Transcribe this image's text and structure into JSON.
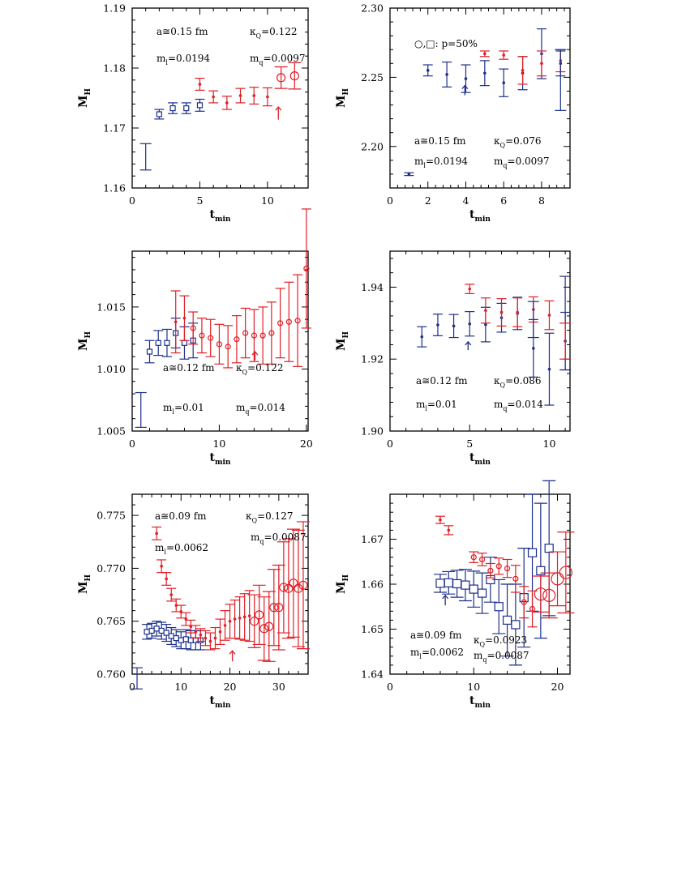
{
  "figure": {
    "palette": {
      "blue": "#1c2f8c",
      "red": "#e01f26",
      "frame": "#000000"
    }
  },
  "chart_data": [
    {
      "type": "scatter",
      "xlabel": "t",
      "xlabel_sub": "min",
      "ylabel": "M",
      "ylabel_sub": "H",
      "xlim": [
        0,
        13
      ],
      "ylim": [
        1.16,
        1.19
      ],
      "xticks": [
        0,
        5,
        10
      ],
      "yticks": [
        1.16,
        1.17,
        1.18,
        1.19
      ],
      "yticks_text": [
        "1.16",
        "1.17",
        "1.18",
        "1.19"
      ],
      "annotations": [
        {
          "base": "a≅0.15 fm"
        },
        {
          "base": "κ",
          "sub": "Q",
          "after": "=0.122"
        },
        {
          "base": "m",
          "sub": "l",
          "after": "=0.0194"
        },
        {
          "base": "m",
          "sub": "q",
          "after": "=0.0097"
        }
      ],
      "arrow": {
        "x": 10.8,
        "y_bottom": 1.1714,
        "y_top": 1.1735,
        "color": "red"
      },
      "series": [
        {
          "marker": "box",
          "color": "blue",
          "size": "medium",
          "x": [
            1
          ],
          "y": [
            1.1652
          ],
          "err": [
            0.0022
          ]
        },
        {
          "marker": "square",
          "color": "blue",
          "size": "small",
          "x": [
            2,
            3,
            4,
            5
          ],
          "y": [
            1.1723,
            1.1733,
            1.1733,
            1.1738
          ],
          "err": [
            0.0008,
            0.0009,
            0.0009,
            0.001
          ]
        },
        {
          "marker": "dot",
          "color": "red",
          "size": "small",
          "x": [
            5,
            6,
            7,
            8,
            9,
            10
          ],
          "y": [
            1.1773,
            1.1752,
            1.1742,
            1.1754,
            1.1754,
            1.1752
          ],
          "err": [
            0.001,
            0.001,
            0.0011,
            0.0012,
            0.0014,
            0.0015
          ]
        },
        {
          "marker": "circle",
          "color": "red",
          "size": "medium",
          "x": [
            11,
            12
          ],
          "y": [
            1.1784,
            1.1787
          ],
          "err": [
            0.0018,
            0.0022
          ]
        }
      ]
    },
    {
      "type": "scatter",
      "xlabel": "t",
      "xlabel_sub": "min",
      "ylabel": "M",
      "ylabel_sub": "H",
      "xlim": [
        0,
        9.5
      ],
      "ylim": [
        2.17,
        2.3
      ],
      "xticks": [
        0,
        2,
        4,
        6,
        8
      ],
      "yticks": [
        2.2,
        2.25,
        2.3
      ],
      "yticks_text": [
        "2.20",
        "2.25",
        "2.30"
      ],
      "annotations": [
        {
          "base": "○,□: p=50%"
        },
        {
          "base": "a≅0.15 fm"
        },
        {
          "base": "κ",
          "sub": "Q",
          "after": "=0.076"
        },
        {
          "base": "m",
          "sub": "l",
          "after": "=0.0194"
        },
        {
          "base": "m",
          "sub": "q",
          "after": "=0.0097"
        }
      ],
      "arrow": {
        "x": 3.95,
        "y_bottom": 2.237,
        "y_top": 2.244,
        "color": "blue"
      },
      "series": [
        {
          "marker": "dot",
          "color": "blue",
          "size": "small",
          "x": [
            1,
            2,
            3,
            4,
            5,
            6,
            7,
            8,
            9
          ],
          "y": [
            2.18,
            2.255,
            2.252,
            2.249,
            2.253,
            2.246,
            2.253,
            2.267,
            2.26
          ],
          "err": [
            0.001,
            0.004,
            0.009,
            0.01,
            0.009,
            0.01,
            0.012,
            0.018,
            0.009
          ]
        },
        {
          "marker": "dot",
          "color": "red",
          "size": "small",
          "x": [
            5,
            6,
            7,
            8,
            9
          ],
          "y": [
            2.267,
            2.266,
            2.255,
            2.26,
            2.262
          ],
          "err": [
            0.002,
            0.003,
            0.01,
            0.009,
            0.008
          ]
        },
        {
          "marker": "box",
          "color": "blue",
          "size": "medium",
          "x": [
            9
          ],
          "y": [
            2.248
          ],
          "err": [
            0.022
          ]
        }
      ]
    },
    {
      "type": "scatter",
      "xlabel": "t",
      "xlabel_sub": "min",
      "ylabel": "M",
      "ylabel_sub": "H",
      "xlim": [
        0,
        20.2
      ],
      "ylim": [
        1.005,
        1.0195
      ],
      "xticks": [
        0,
        10,
        20
      ],
      "yticks": [
        1.005,
        1.01,
        1.015
      ],
      "yticks_text": [
        "1.005",
        "1.010",
        "1.015"
      ],
      "annotations": [
        {
          "base": "a≅0.12 fm"
        },
        {
          "base": "κ",
          "sub": "Q",
          "after": "=0.122"
        },
        {
          "base": "m",
          "sub": "l",
          "after": "=0.01"
        },
        {
          "base": "m",
          "sub": "q",
          "after": "=0.014"
        }
      ],
      "arrow": {
        "x": 14.1,
        "y_bottom": 1.0107,
        "y_top": 1.0114,
        "color": "red"
      },
      "series": [
        {
          "marker": "box",
          "color": "blue",
          "size": "medium",
          "x": [
            1
          ],
          "y": [
            1.0067
          ],
          "err": [
            0.0014
          ]
        },
        {
          "marker": "square",
          "color": "blue",
          "size": "small",
          "x": [
            2,
            3,
            4,
            5,
            6,
            7
          ],
          "y": [
            1.0114,
            1.0121,
            1.0121,
            1.0129,
            1.0121,
            1.0123
          ],
          "err": [
            0.0009,
            0.001,
            0.0011,
            0.0012,
            0.0013,
            0.0014
          ]
        },
        {
          "marker": "dot",
          "color": "red",
          "size": "small",
          "x": [
            5,
            6
          ],
          "y": [
            1.0138,
            1.0141
          ],
          "err": [
            0.0025,
            0.0018
          ]
        },
        {
          "marker": "circle",
          "color": "red",
          "size": "small",
          "x": [
            7,
            8,
            9,
            10,
            11,
            12,
            13,
            14,
            15,
            16,
            17,
            18,
            19,
            20
          ],
          "y": [
            1.0133,
            1.0127,
            1.0125,
            1.012,
            1.0118,
            1.0124,
            1.0129,
            1.0127,
            1.0127,
            1.0129,
            1.0137,
            1.0138,
            1.0139,
            1.0181
          ],
          "err": [
            0.0013,
            0.0014,
            0.0015,
            0.0016,
            0.0017,
            0.0019,
            0.002,
            0.0021,
            0.0023,
            0.0025,
            0.0028,
            0.0032,
            0.0037,
            0.0048
          ]
        }
      ]
    },
    {
      "type": "scatter",
      "xlabel": "t",
      "xlabel_sub": "min",
      "ylabel": "M",
      "ylabel_sub": "H",
      "xlim": [
        0,
        11.3
      ],
      "ylim": [
        1.9,
        1.95
      ],
      "xticks": [
        0,
        5,
        10
      ],
      "yticks": [
        1.9,
        1.92,
        1.94
      ],
      "yticks_text": [
        "1.90",
        "1.92",
        "1.94"
      ],
      "annotations": [
        {
          "base": "a≅0.12 fm"
        },
        {
          "base": "κ",
          "sub": "Q",
          "after": "=0.086"
        },
        {
          "base": "m",
          "sub": "l",
          "after": "=0.01"
        },
        {
          "base": "m",
          "sub": "q",
          "after": "=0.014"
        }
      ],
      "arrow": {
        "x": 4.9,
        "y_bottom": 1.9225,
        "y_top": 1.9248,
        "color": "blue"
      },
      "series": [
        {
          "marker": "dot",
          "color": "blue",
          "size": "small",
          "x": [
            2,
            3,
            4,
            5,
            6,
            7,
            8,
            9,
            10,
            11
          ],
          "y": [
            1.9262,
            1.9295,
            1.9292,
            1.9298,
            1.9296,
            1.9315,
            1.9327,
            1.923,
            1.9172,
            1.925
          ],
          "err": [
            0.0028,
            0.003,
            0.0032,
            0.0034,
            0.0048,
            0.004,
            0.0045,
            0.008,
            0.01,
            0.008
          ]
        },
        {
          "marker": "dot",
          "color": "red",
          "size": "small",
          "x": [
            5,
            6,
            7,
            8,
            9,
            10
          ],
          "y": [
            1.9395,
            1.9335,
            1.933,
            1.933,
            1.9338,
            1.9322
          ],
          "err": [
            0.0013,
            0.0035,
            0.0038,
            0.004,
            0.0035,
            0.004
          ]
        },
        {
          "marker": "box",
          "color": "blue",
          "size": "small",
          "x": [
            9,
            11
          ],
          "y": [
            1.931,
            1.93
          ],
          "err": [
            0.005,
            0.013
          ]
        },
        {
          "marker": "box",
          "color": "red",
          "size": "small",
          "x": [
            11
          ],
          "y": [
            1.925
          ],
          "err": [
            0.005
          ]
        }
      ]
    },
    {
      "type": "scatter",
      "xlabel": "t",
      "xlabel_sub": "min",
      "ylabel": "M",
      "ylabel_sub": "H",
      "xlim": [
        0,
        36
      ],
      "ylim": [
        0.76,
        0.777
      ],
      "xticks": [
        0,
        10,
        20,
        30
      ],
      "yticks": [
        0.76,
        0.765,
        0.77,
        0.775
      ],
      "yticks_text": [
        "0.760",
        "0.765",
        "0.770",
        "0.775"
      ],
      "annotations": [
        {
          "base": "a≅0.09 fm"
        },
        {
          "base": "κ",
          "sub": "Q",
          "after": "=0.127"
        },
        {
          "base": "m",
          "sub": "l",
          "after": "=0.0062"
        },
        {
          "base": "m",
          "sub": "q",
          "after": "=0.0087"
        }
      ],
      "arrow": {
        "x": 20.5,
        "y_bottom": 0.7612,
        "y_top": 0.7622,
        "color": "red"
      },
      "series": [
        {
          "marker": "box",
          "color": "blue",
          "size": "small",
          "x": [
            1
          ],
          "y": [
            0.7596
          ],
          "err": [
            0.001
          ]
        },
        {
          "marker": "square",
          "color": "blue",
          "size": "small",
          "x": [
            3,
            4,
            5,
            6,
            7,
            8,
            9,
            10,
            11,
            12,
            13,
            14
          ],
          "y": [
            0.764,
            0.7641,
            0.7643,
            0.7641,
            0.7639,
            0.7636,
            0.7634,
            0.7632,
            0.7633,
            0.7632,
            0.7632,
            0.7632
          ],
          "err": [
            0.0007,
            0.0007,
            0.0007,
            0.0008,
            0.0008,
            0.0008,
            0.0008,
            0.0008,
            0.0009,
            0.0009,
            0.0009,
            0.0009
          ]
        },
        {
          "marker": "dot",
          "color": "red",
          "size": "small",
          "x": [
            5,
            6,
            7,
            8,
            9,
            10,
            11,
            12,
            13,
            14,
            15,
            16,
            17,
            18,
            19,
            20,
            21,
            22,
            23,
            24
          ],
          "y": [
            0.7733,
            0.7702,
            0.769,
            0.7675,
            0.7665,
            0.7659,
            0.7652,
            0.7645,
            0.764,
            0.7637,
            0.7634,
            0.7631,
            0.7634,
            0.764,
            0.7646,
            0.765,
            0.7652,
            0.7653,
            0.7654,
            0.7655
          ],
          "err": [
            0.0006,
            0.0006,
            0.0006,
            0.0006,
            0.0006,
            0.0006,
            0.0006,
            0.0006,
            0.0006,
            0.0006,
            0.0007,
            0.0008,
            0.001,
            0.0012,
            0.0014,
            0.0016,
            0.0018,
            0.002,
            0.0022,
            0.0024
          ]
        },
        {
          "marker": "circle",
          "color": "red",
          "size": "medium",
          "x": [
            25,
            26,
            27,
            28,
            29,
            30,
            31,
            32,
            33,
            34,
            35
          ],
          "y": [
            0.765,
            0.7656,
            0.7643,
            0.7645,
            0.7663,
            0.7663,
            0.7682,
            0.7681,
            0.7686,
            0.7681,
            0.7684
          ],
          "err": [
            0.0025,
            0.0028,
            0.003,
            0.0033,
            0.0036,
            0.004,
            0.0043,
            0.0047,
            0.0051,
            0.0055,
            0.006
          ]
        }
      ]
    },
    {
      "type": "scatter",
      "xlabel": "t",
      "xlabel_sub": "min",
      "ylabel": "M",
      "ylabel_sub": "H",
      "xlim": [
        0,
        21.5
      ],
      "ylim": [
        1.64,
        1.68
      ],
      "xticks": [
        0,
        10,
        20
      ],
      "yticks": [
        1.64,
        1.65,
        1.66,
        1.67
      ],
      "yticks_text": [
        "1.64",
        "1.65",
        "1.66",
        "1.67"
      ],
      "annotations": [
        {
          "base": "a≅0.09 fm"
        },
        {
          "base": "κ",
          "sub": "Q",
          "after": "=0.0923"
        },
        {
          "base": "m",
          "sub": "l",
          "after": "=0.0062"
        },
        {
          "base": "m",
          "sub": "q",
          "after": "=0.0087"
        }
      ],
      "arrow": {
        "x": 6.6,
        "y_bottom": 1.6553,
        "y_top": 1.6575,
        "color": "blue"
      },
      "series": [
        {
          "marker": "square",
          "color": "blue",
          "size": "medium",
          "x": [
            6,
            7,
            8,
            9,
            10,
            11,
            12,
            13,
            14,
            15,
            16,
            17,
            18,
            19
          ],
          "y": [
            1.6602,
            1.6603,
            1.6601,
            1.6598,
            1.6589,
            1.658,
            1.661,
            1.655,
            1.652,
            1.651,
            1.657,
            1.667,
            1.663,
            1.668
          ],
          "err": [
            0.002,
            0.0025,
            0.003,
            0.0035,
            0.004,
            0.0045,
            0.005,
            0.006,
            0.008,
            0.009,
            0.011,
            0.013,
            0.015,
            0.015
          ]
        },
        {
          "marker": "dot",
          "color": "red",
          "size": "small",
          "x": [
            6,
            7
          ],
          "y": [
            1.6743,
            1.672
          ],
          "err": [
            0.0008,
            0.001
          ]
        },
        {
          "marker": "circle",
          "color": "red",
          "size": "small",
          "x": [
            10,
            11,
            12,
            13,
            14,
            15,
            16,
            17
          ],
          "y": [
            1.666,
            1.6655,
            1.663,
            1.664,
            1.6635,
            1.6612,
            1.656,
            1.6545
          ],
          "err": [
            0.0012,
            0.0014,
            0.0016,
            0.0018,
            0.002,
            0.003,
            0.0035,
            0.004
          ]
        },
        {
          "marker": "circle",
          "color": "red",
          "size": "large",
          "x": [
            18,
            19,
            20,
            21
          ],
          "y": [
            1.6578,
            1.6575,
            1.6612,
            1.6626
          ],
          "err": [
            0.004,
            0.005,
            0.006,
            0.009
          ]
        }
      ]
    }
  ]
}
